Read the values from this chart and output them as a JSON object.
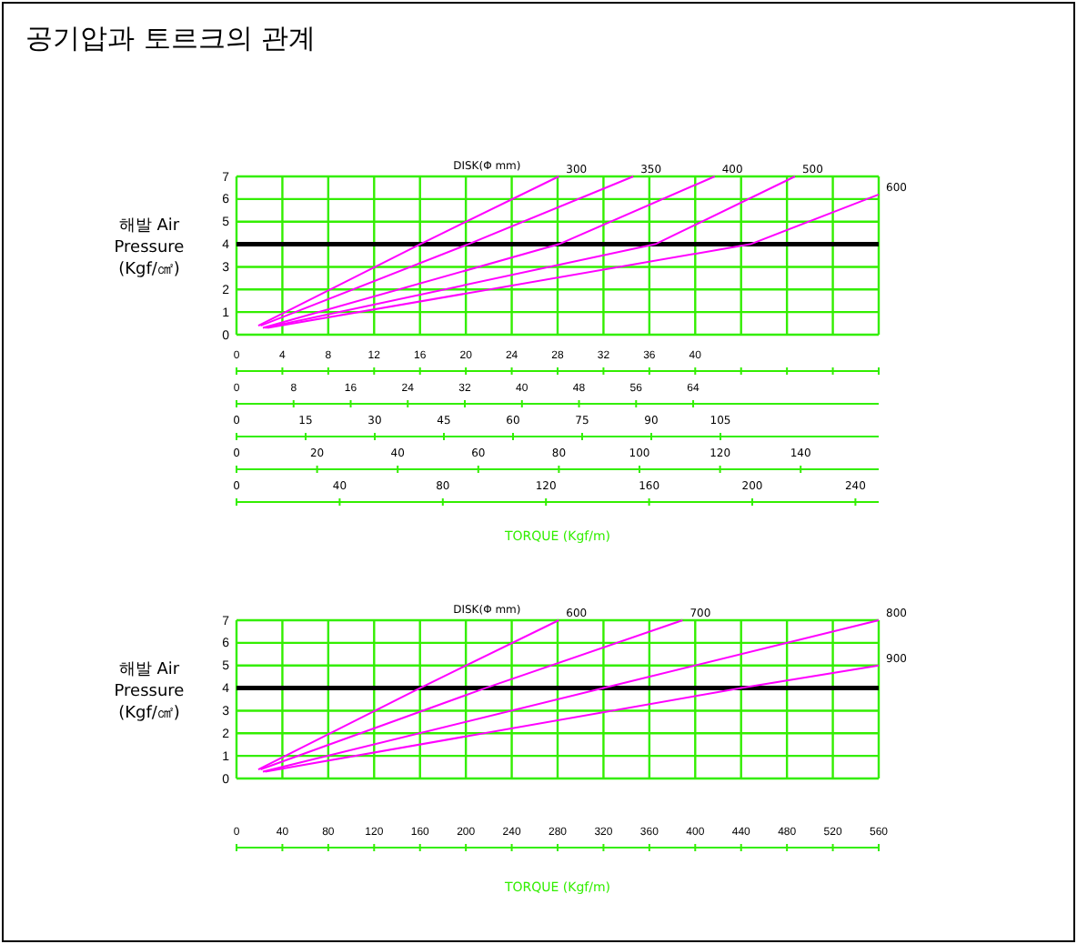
{
  "chart_data": [
    {
      "type": "line",
      "title": "공기압과 토르크의 관계",
      "legend_title": "DISK(Φ mm)",
      "ylabel": "해발 Air Pressure (Kgf/㎠)",
      "xlabel": "TORQUE (Kgf/m)",
      "grid": true,
      "marker": "none",
      "line_style": "solid",
      "ylim": [
        0,
        7
      ],
      "yticks": [
        0,
        1,
        2,
        3,
        4,
        5,
        6,
        7
      ],
      "xlim": [
        0,
        56
      ],
      "xticks": [
        0,
        4,
        8,
        12,
        16,
        20,
        24,
        28,
        32,
        36,
        40,
        {
          "value": 44,
          "label": null
        },
        {
          "value": 48,
          "label": null
        },
        {
          "value": 52,
          "label": null
        },
        {
          "value": 56,
          "label": null
        }
      ],
      "x2lim": [
        0,
        90
      ],
      "x2ticks": [
        0,
        8,
        16,
        24,
        32,
        40,
        48,
        56,
        64
      ],
      "annotations": [
        "0",
        "15",
        "30",
        "45",
        "60",
        "75",
        "90",
        "105",
        "0",
        "20",
        "40",
        "60",
        "80",
        "100",
        "120",
        "140",
        "0",
        "40",
        "80",
        "120",
        "160",
        "200",
        "240"
      ],
      "ref_lines": [
        {
          "axis": "y",
          "value": 4,
          "color": "#000000"
        }
      ],
      "series": [
        {
          "name": "300",
          "color": "#ff00ff",
          "x": [
            1.9,
            16,
            28.1
          ],
          "values": [
            0.4,
            4,
            7
          ]
        },
        {
          "name": "350",
          "color": "#ff00ff",
          "x": [
            2.1,
            20.2,
            34.6
          ],
          "values": [
            0.4,
            4,
            7
          ]
        },
        {
          "name": "400",
          "color": "#ff00ff",
          "x": [
            2.3,
            28.1,
            41.7
          ],
          "values": [
            0.3,
            4,
            7
          ]
        },
        {
          "name": "500",
          "color": "#ff00ff",
          "x": [
            2.5,
            36.5,
            48.7
          ],
          "values": [
            0.3,
            4,
            7
          ]
        },
        {
          "name": "600",
          "color": "#ff00ff",
          "x": [
            2.7,
            44.8,
            56
          ],
          "values": [
            0.3,
            4,
            6.2
          ]
        }
      ]
    },
    {
      "type": "line",
      "legend_title": "DISK(Φ mm)",
      "ylabel": "해발 Air Pressure (Kgf/㎠)",
      "xlabel": "TORQUE (Kgf/m)",
      "grid": true,
      "marker": "none",
      "line_style": "solid",
      "ylim": [
        0,
        7
      ],
      "yticks": [
        0,
        1,
        2,
        3,
        4,
        5,
        6,
        7
      ],
      "xlim": [
        0,
        560
      ],
      "xticks": [
        0,
        40,
        80,
        120,
        160,
        200,
        240,
        280,
        320,
        360,
        400,
        440,
        480,
        520,
        560
      ],
      "ref_lines": [
        {
          "axis": "y",
          "value": 4,
          "color": "#000000"
        }
      ],
      "series": [
        {
          "name": "600",
          "color": "#ff00ff",
          "x": [
            19,
            160,
            281
          ],
          "values": [
            0.4,
            4,
            7
          ]
        },
        {
          "name": "700",
          "color": "#ff00ff",
          "x": [
            21,
            217,
            389
          ],
          "values": [
            0.4,
            4,
            7
          ]
        },
        {
          "name": "800",
          "color": "#ff00ff",
          "x": [
            23,
            320,
            560
          ],
          "values": [
            0.3,
            4,
            7
          ]
        },
        {
          "name": "900",
          "color": "#ff00ff",
          "x": [
            25,
            440,
            560
          ],
          "values": [
            0.3,
            4,
            5
          ]
        }
      ]
    }
  ]
}
